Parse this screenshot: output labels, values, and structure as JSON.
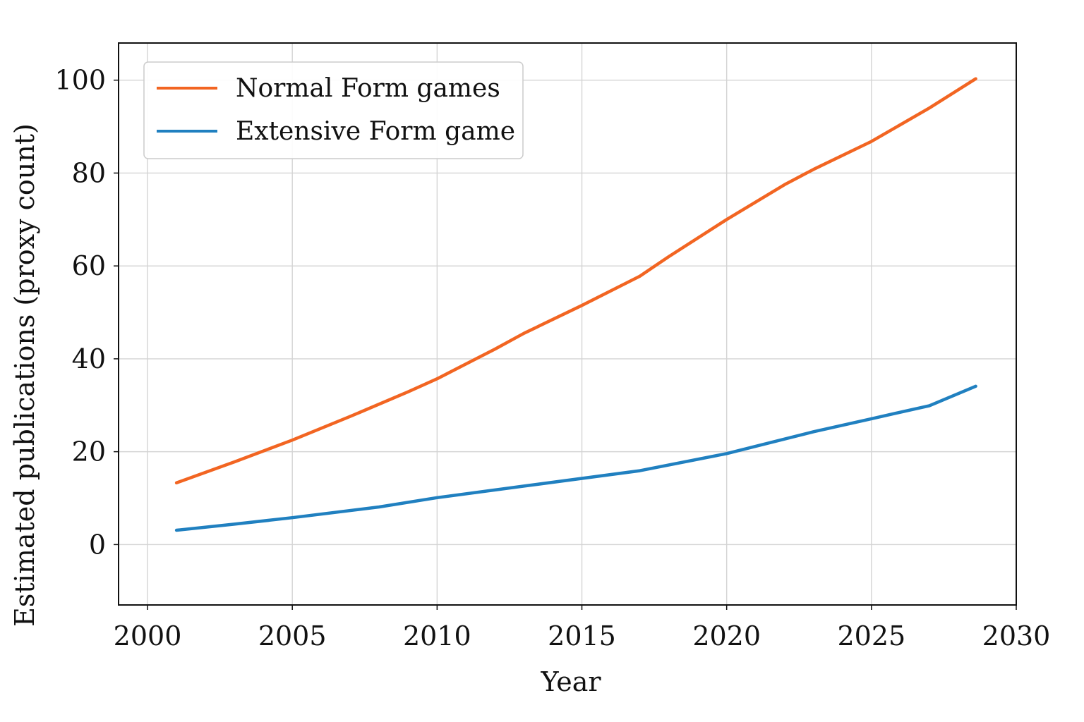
{
  "chart_data": {
    "type": "line",
    "title": "",
    "xlabel": "Year",
    "ylabel": "Estimated publications (proxy count)",
    "xlim": [
      1999,
      2030
    ],
    "ylim": [
      -13,
      108
    ],
    "x_ticks": [
      2000,
      2005,
      2010,
      2015,
      2020,
      2025,
      2030
    ],
    "y_ticks": [
      0,
      20,
      40,
      60,
      80,
      100
    ],
    "grid": true,
    "legend_position": "upper left",
    "series": [
      {
        "name": "Normal Form games",
        "color": "#f26522",
        "x": [
          2001,
          2003,
          2005,
          2007,
          2009,
          2010,
          2012,
          2013,
          2015,
          2017,
          2018,
          2020,
          2022,
          2023,
          2025,
          2027,
          2028.6
        ],
        "y": [
          13.3,
          17.8,
          22.5,
          27.6,
          32.9,
          35.7,
          42.1,
          45.5,
          51.5,
          57.8,
          62.0,
          70.0,
          77.5,
          80.8,
          86.8,
          94.0,
          100.3
        ]
      },
      {
        "name": "Extensive Form game",
        "color": "#2080c0",
        "x": [
          2001,
          2003,
          2005,
          2008,
          2010,
          2013,
          2017,
          2020,
          2023,
          2025,
          2027,
          2028.6
        ],
        "y": [
          3.1,
          4.4,
          5.8,
          8.1,
          10.1,
          12.6,
          15.9,
          19.6,
          24.3,
          27.1,
          29.9,
          34.1
        ]
      }
    ]
  }
}
